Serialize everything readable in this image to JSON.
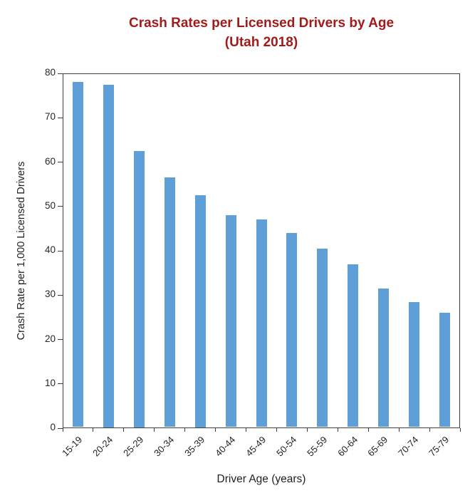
{
  "title": {
    "line1": "Crash Rates per Licensed Drivers by Age",
    "line2": "(Utah 2018)"
  },
  "colors": {
    "title": "#a11b1b",
    "bar": "#5f9fd8",
    "axis": "#3f3f3f"
  },
  "chart_data": {
    "type": "bar",
    "title": "Crash Rates per Licensed Drivers by Age (Utah 2018)",
    "xlabel": "Driver Age (years)",
    "ylabel": "Crash Rate per 1,000 Licensed Drivers",
    "categories": [
      "15-19",
      "20-24",
      "25-29",
      "30-34",
      "35-39",
      "40-44",
      "45-49",
      "50-54",
      "55-59",
      "60-64",
      "65-69",
      "70-74",
      "75-79"
    ],
    "values": [
      78,
      77.5,
      62.5,
      56.5,
      52.5,
      48,
      47,
      44,
      40.5,
      37,
      31.5,
      28.5,
      26
    ],
    "ylim": [
      0,
      80
    ],
    "yticks": [
      0,
      10,
      20,
      30,
      40,
      50,
      60,
      70,
      80
    ],
    "grid": false,
    "legend": "none",
    "x_tick_rotation_deg": -45
  }
}
